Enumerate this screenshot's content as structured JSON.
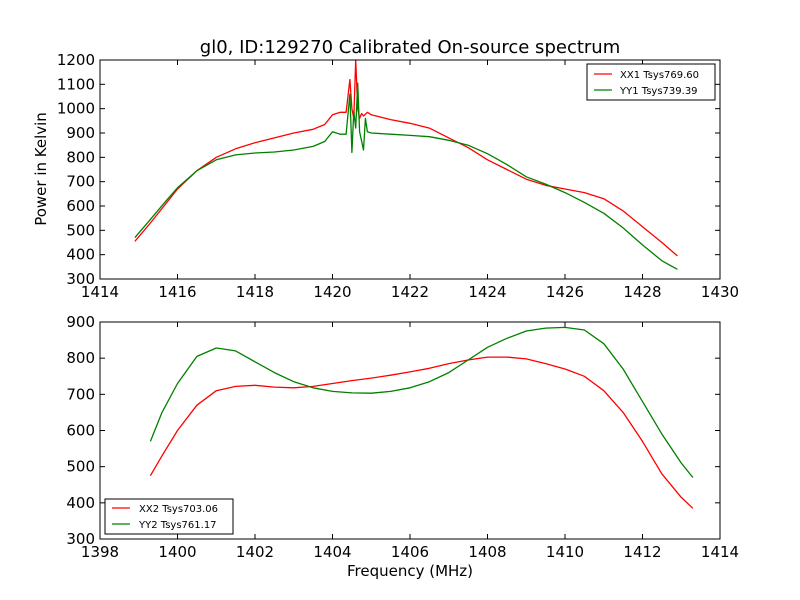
{
  "chart_data": [
    {
      "type": "line",
      "title": "gl0, ID:129270 Calibrated On-source spectrum",
      "xlabel": "",
      "ylabel": "Power in Kelvin",
      "xlim": [
        1414,
        1430
      ],
      "ylim": [
        300,
        1200
      ],
      "xticks": [
        1414,
        1416,
        1418,
        1420,
        1422,
        1424,
        1426,
        1428,
        1430
      ],
      "yticks": [
        300,
        400,
        500,
        600,
        700,
        800,
        900,
        1000,
        1100,
        1200
      ],
      "grid": false,
      "legend_position": "top-right",
      "series": [
        {
          "name": "XX1 Tsys769.60",
          "color": "#ff0000",
          "x": [
            1414.9,
            1415.3,
            1415.7,
            1416.0,
            1416.5,
            1417.0,
            1417.5,
            1418.0,
            1418.5,
            1419.0,
            1419.5,
            1419.8,
            1420.0,
            1420.2,
            1420.35,
            1420.45,
            1420.5,
            1420.55,
            1420.6,
            1420.65,
            1420.7,
            1420.75,
            1420.8,
            1420.9,
            1421.0,
            1421.5,
            1422.0,
            1422.5,
            1423.0,
            1423.5,
            1424.0,
            1424.5,
            1425.0,
            1425.5,
            1426.0,
            1426.5,
            1427.0,
            1427.5,
            1428.0,
            1428.5,
            1428.9
          ],
          "y": [
            455,
            530,
            610,
            670,
            745,
            800,
            835,
            860,
            880,
            900,
            915,
            935,
            975,
            985,
            985,
            1120,
            1000,
            960,
            1200,
            1000,
            960,
            980,
            970,
            985,
            975,
            955,
            940,
            920,
            880,
            840,
            790,
            750,
            710,
            685,
            670,
            655,
            630,
            580,
            515,
            450,
            395
          ]
        },
        {
          "name": "YY1 Tsys739.39",
          "color": "#008000",
          "x": [
            1414.9,
            1415.3,
            1415.7,
            1416.0,
            1416.5,
            1417.0,
            1417.5,
            1418.0,
            1418.5,
            1419.0,
            1419.5,
            1419.8,
            1420.0,
            1420.2,
            1420.35,
            1420.45,
            1420.5,
            1420.55,
            1420.6,
            1420.65,
            1420.7,
            1420.8,
            1420.85,
            1420.9,
            1421.0,
            1421.5,
            1422.0,
            1422.5,
            1423.0,
            1423.5,
            1424.0,
            1424.5,
            1425.0,
            1425.5,
            1426.0,
            1426.5,
            1427.0,
            1427.5,
            1428.0,
            1428.5,
            1428.9
          ],
          "y": [
            470,
            545,
            620,
            675,
            745,
            790,
            810,
            818,
            822,
            830,
            845,
            865,
            905,
            895,
            895,
            1060,
            820,
            990,
            920,
            1105,
            905,
            830,
            960,
            905,
            900,
            895,
            890,
            885,
            870,
            850,
            815,
            770,
            720,
            690,
            655,
            615,
            570,
            510,
            440,
            375,
            340
          ]
        }
      ]
    },
    {
      "type": "line",
      "title": "",
      "xlabel": "Frequency (MHz)",
      "ylabel": "",
      "xlim": [
        1398,
        1414
      ],
      "ylim": [
        300,
        900
      ],
      "xticks": [
        1398,
        1400,
        1402,
        1404,
        1406,
        1408,
        1410,
        1412,
        1414
      ],
      "yticks": [
        300,
        400,
        500,
        600,
        700,
        800,
        900
      ],
      "grid": false,
      "legend_position": "bottom-left",
      "series": [
        {
          "name": "XX2 Tsys703.06",
          "color": "#ff0000",
          "x": [
            1399.3,
            1399.6,
            1400.0,
            1400.5,
            1401.0,
            1401.5,
            1402.0,
            1402.5,
            1403.0,
            1403.5,
            1404.0,
            1404.5,
            1405.0,
            1405.5,
            1406.0,
            1406.5,
            1407.0,
            1407.5,
            1408.0,
            1408.5,
            1409.0,
            1409.5,
            1410.0,
            1410.5,
            1411.0,
            1411.5,
            1412.0,
            1412.5,
            1413.0,
            1413.3
          ],
          "y": [
            475,
            530,
            600,
            670,
            710,
            722,
            725,
            720,
            718,
            722,
            730,
            738,
            745,
            753,
            762,
            772,
            785,
            795,
            803,
            803,
            798,
            785,
            770,
            750,
            710,
            650,
            570,
            480,
            415,
            385
          ]
        },
        {
          "name": "YY2 Tsys761.17",
          "color": "#008000",
          "x": [
            1399.3,
            1399.6,
            1400.0,
            1400.5,
            1401.0,
            1401.5,
            1402.0,
            1402.5,
            1403.0,
            1403.5,
            1404.0,
            1404.5,
            1405.0,
            1405.5,
            1406.0,
            1406.5,
            1407.0,
            1407.5,
            1408.0,
            1408.5,
            1409.0,
            1409.5,
            1410.0,
            1410.5,
            1411.0,
            1411.5,
            1412.0,
            1412.5,
            1413.0,
            1413.3
          ],
          "y": [
            570,
            650,
            730,
            805,
            828,
            820,
            790,
            760,
            735,
            718,
            708,
            704,
            703,
            708,
            718,
            735,
            760,
            795,
            830,
            855,
            875,
            883,
            885,
            878,
            840,
            770,
            680,
            590,
            510,
            470
          ]
        }
      ]
    }
  ]
}
